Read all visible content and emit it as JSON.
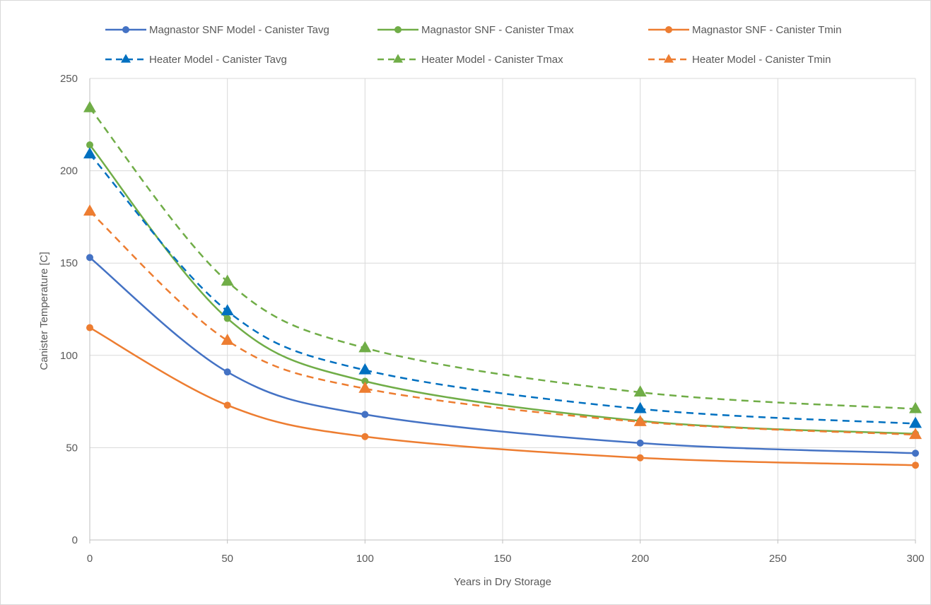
{
  "chart_data": {
    "type": "line",
    "title": "",
    "xlabel": "Years in Dry Storage",
    "ylabel": "Canister  Temperature [C]",
    "xlim": [
      0,
      300
    ],
    "ylim": [
      0,
      250
    ],
    "xticks": [
      0,
      50,
      100,
      150,
      200,
      250,
      300
    ],
    "yticks": [
      0,
      50,
      100,
      150,
      200,
      250
    ],
    "grid": true,
    "legend_position": "top",
    "series": [
      {
        "name": "Magnastor SNF Model - Canister Tavg",
        "color": "#4472C4",
        "line": "solid",
        "marker": "circle",
        "x": [
          0,
          50,
          100,
          200,
          300
        ],
        "y": [
          153,
          91,
          68,
          52.5,
          47
        ]
      },
      {
        "name": "Magnastor SNF - Canister Tmax",
        "color": "#70AD47",
        "line": "solid",
        "marker": "circle",
        "x": [
          0,
          50,
          100,
          200,
          300
        ],
        "y": [
          214,
          120,
          86,
          64.5,
          57.5
        ]
      },
      {
        "name": "Magnastor SNF - Canister Tmin",
        "color": "#ED7D31",
        "line": "solid",
        "marker": "circle",
        "x": [
          0,
          50,
          100,
          200,
          300
        ],
        "y": [
          115,
          73,
          56,
          44.5,
          40.5
        ]
      },
      {
        "name": "Heater Model - Canister Tavg",
        "color": "#0070C0",
        "line": "dashed",
        "marker": "triangle",
        "x": [
          0,
          50,
          100,
          200,
          300
        ],
        "y": [
          209,
          124,
          92,
          71,
          63
        ]
      },
      {
        "name": "Heater Model - Canister Tmax",
        "color": "#70AD47",
        "line": "dashed",
        "marker": "triangle",
        "x": [
          0,
          50,
          100,
          200,
          300
        ],
        "y": [
          234,
          140,
          104,
          80,
          71
        ]
      },
      {
        "name": "Heater Model - Canister Tmin",
        "color": "#ED7D31",
        "line": "dashed",
        "marker": "triangle",
        "x": [
          0,
          50,
          100,
          200,
          300
        ],
        "y": [
          178,
          108,
          82,
          64,
          57
        ]
      }
    ]
  }
}
